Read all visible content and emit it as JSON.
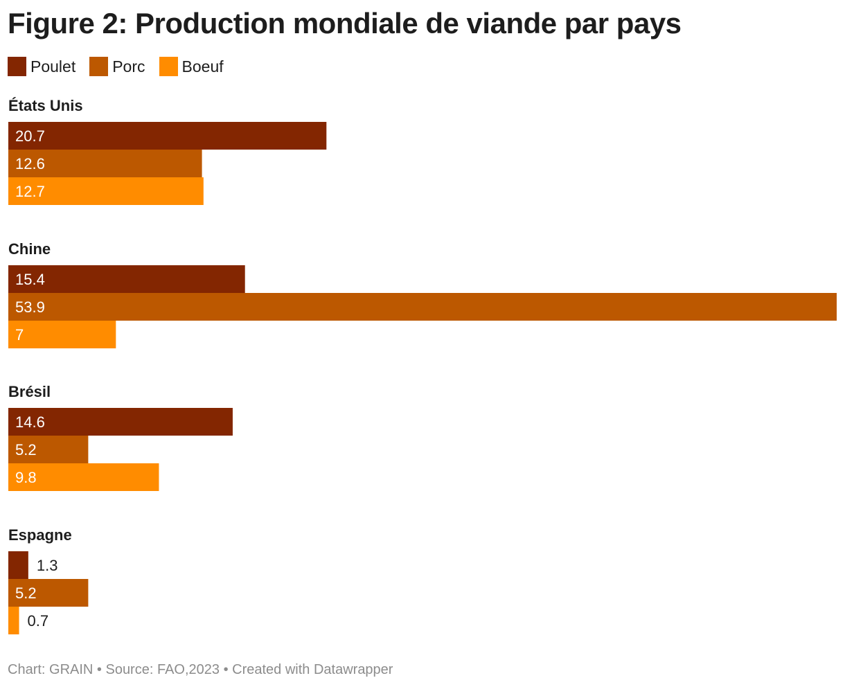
{
  "chart_data": {
    "type": "bar",
    "orientation": "horizontal-grouped",
    "title": "Figure 2: Production mondiale de viande par pays",
    "categories": [
      "États Unis",
      "Chine",
      "Brésil",
      "Espagne"
    ],
    "series": [
      {
        "name": "Poulet",
        "color": "#832601",
        "values": [
          20.7,
          15.4,
          14.6,
          1.3
        ],
        "labels": [
          "20.7",
          "15.4",
          "14.6",
          "1.3"
        ]
      },
      {
        "name": "Porc",
        "color": "#bc5800",
        "values": [
          12.6,
          53.9,
          5.2,
          5.2
        ],
        "labels": [
          "12.6",
          "53.9",
          "5.2",
          "5.2"
        ]
      },
      {
        "name": "Boeuf",
        "color": "#ff8c00",
        "values": [
          12.7,
          7,
          9.8,
          0.7
        ],
        "labels": [
          "12.7",
          "7",
          "9.8",
          "0.7"
        ]
      }
    ],
    "xlim": [
      0,
      53.9
    ],
    "grid": false,
    "legend_position": "top-left"
  },
  "footer": {
    "credit": "Chart: GRAIN • Source: FAO,2023 • Created with Datawrapper"
  }
}
